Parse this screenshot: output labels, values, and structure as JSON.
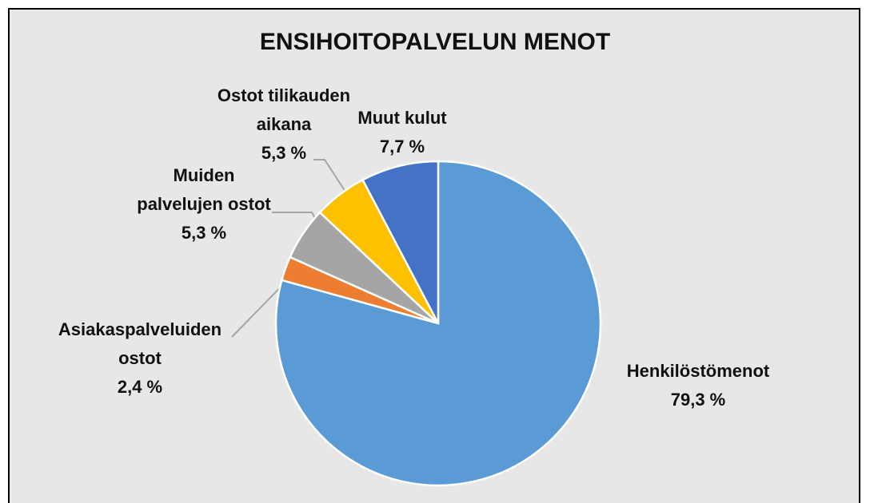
{
  "chart_data": {
    "type": "pie",
    "title": "ENSIHOITOPALVELUN MENOT",
    "categories": [
      "Henkilöstömenot",
      "Asiakaspalveluiden ostot",
      "Muiden palvelujen ostot",
      "Ostot tilikauden aikana",
      "Muut kulut"
    ],
    "values": [
      79.3,
      2.4,
      5.3,
      5.3,
      7.7
    ],
    "value_labels": [
      "79,3 %",
      "2,4 %",
      "5,3 %",
      "5,3 %",
      "7,7 %"
    ],
    "colors": [
      "#5b9bd5",
      "#ed7d31",
      "#a5a5a5",
      "#ffc000",
      "#4472c4"
    ]
  }
}
